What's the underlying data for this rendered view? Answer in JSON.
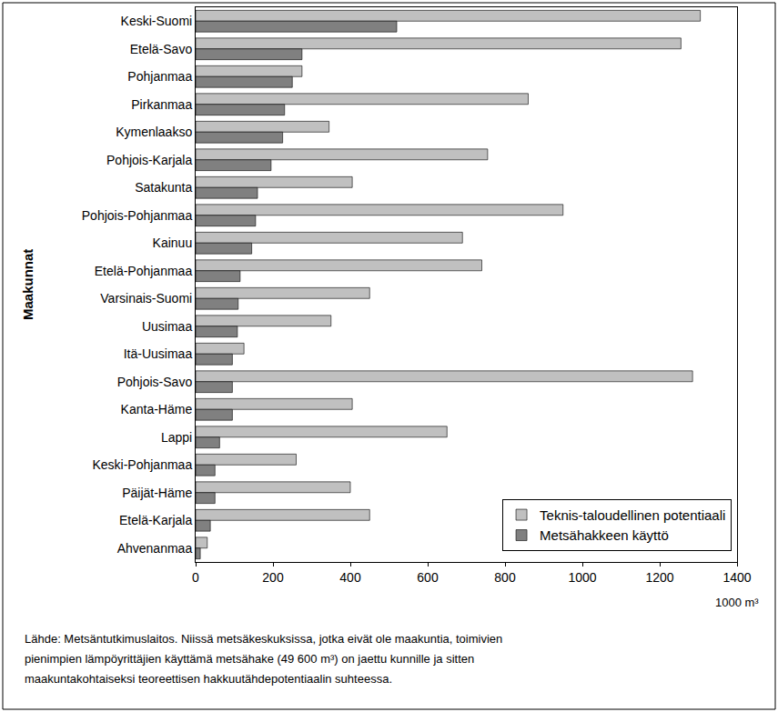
{
  "chart_data": {
    "type": "bar",
    "orientation": "horizontal",
    "ylabel": "Maakunnat",
    "xlabel": "1000 m³",
    "annotations": [
      "Lähde: Metsäntutkimuslaitos. Niissä metsäkeskuksissa, jotka eivät ole maakuntia, toimivien",
      "pienimpien lämpöyrittäjien käyttämä metsähake (49 600 m³) on jaettu kunnille ja sitten",
      "maakuntakohtaiseksi teoreettisen hakkuutähdepotentiaalin suhteessa."
    ],
    "categories": [
      "Keski-Suomi",
      "Etelä-Savo",
      "Pohjanmaa",
      "Pirkanmaa",
      "Kymenlaakso",
      "Pohjois-Karjala",
      "Satakunta",
      "Pohjois-Pohjanmaa",
      "Kainuu",
      "Etelä-Pohjanmaa",
      "Varsinais-Suomi",
      "Uusimaa",
      "Itä-Uusimaa",
      "Pohjois-Savo",
      "Kanta-Häme",
      "Lappi",
      "Keski-Pohjanmaa",
      "Päijät-Häme",
      "Etelä-Karjala",
      "Ahvenanmaa"
    ],
    "series": [
      {
        "name": "Teknis-taloudellinen potentiaali",
        "color": "#c0c0c0",
        "values": [
          1305,
          1255,
          275,
          860,
          345,
          755,
          405,
          950,
          690,
          740,
          450,
          350,
          125,
          1285,
          405,
          650,
          260,
          400,
          450,
          30
        ]
      },
      {
        "name": "Metsähakkeen käyttö",
        "color": "#808080",
        "values": [
          520,
          275,
          250,
          230,
          225,
          195,
          160,
          155,
          145,
          115,
          110,
          108,
          95,
          95,
          95,
          62,
          50,
          50,
          38,
          12
        ]
      }
    ],
    "xlim": [
      0,
      1400
    ],
    "xticks": [
      0,
      200,
      400,
      600,
      800,
      1000,
      1200,
      1400
    ],
    "grid": false,
    "legend": "bottom right"
  }
}
